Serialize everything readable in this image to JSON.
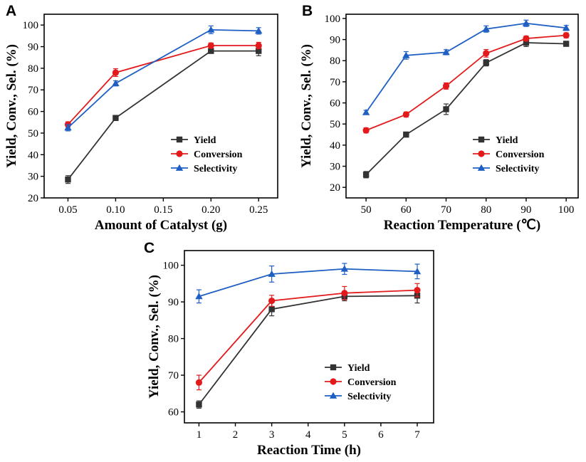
{
  "colors": {
    "yield": "#333333",
    "conversion": "#e31a1c",
    "selectivity": "#1f5fc4"
  },
  "chart_data": [
    {
      "panel": "A",
      "type": "line",
      "xlabel": "Amount of Catalyst (g)",
      "ylabel": "Yield, Conv., Sel. (%)",
      "xlim": [
        0.025,
        0.27
      ],
      "ylim": [
        20,
        105
      ],
      "xticks": [
        0.05,
        0.1,
        0.15,
        0.2,
        0.25
      ],
      "xtick_labels": [
        "0.05",
        "0.10",
        "0.15",
        "0.20",
        "0.25"
      ],
      "yticks": [
        20,
        30,
        40,
        50,
        60,
        70,
        80,
        90,
        100
      ],
      "x": [
        0.05,
        0.1,
        0.2,
        0.25
      ],
      "legend_position": "bottom-right",
      "series": [
        {
          "name": "Yield",
          "key": "yield",
          "marker": "square",
          "values": [
            28.5,
            57,
            88,
            88
          ],
          "errors": [
            1.8,
            1.2,
            1.0,
            2.2
          ]
        },
        {
          "name": "Conversion",
          "key": "conversion",
          "marker": "circle",
          "values": [
            54,
            78,
            90.5,
            90.5
          ],
          "errors": [
            1.2,
            1.8,
            1.2,
            1.5
          ]
        },
        {
          "name": "Selectivity",
          "key": "selectivity",
          "marker": "triangle",
          "values": [
            52.5,
            73,
            97.8,
            97.3
          ],
          "errors": [
            1.5,
            1.2,
            1.8,
            1.5
          ]
        }
      ]
    },
    {
      "panel": "B",
      "type": "line",
      "xlabel": "Reaction Temperature (℃)",
      "ylabel": "Yield, Conv., Sel. (%)",
      "xlim": [
        45,
        103
      ],
      "ylim": [
        15,
        102
      ],
      "xticks": [
        50,
        60,
        70,
        80,
        90,
        100
      ],
      "xtick_labels": [
        "50",
        "60",
        "70",
        "80",
        "90",
        "100"
      ],
      "yticks": [
        20,
        30,
        40,
        50,
        60,
        70,
        80,
        90,
        100
      ],
      "x": [
        50,
        60,
        70,
        80,
        90,
        100
      ],
      "legend_position": "bottom-right",
      "series": [
        {
          "name": "Yield",
          "key": "yield",
          "marker": "square",
          "values": [
            26,
            45,
            57,
            79,
            88.5,
            88
          ],
          "errors": [
            1.5,
            1.2,
            2.5,
            1.5,
            1.8,
            1.2
          ]
        },
        {
          "name": "Conversion",
          "key": "conversion",
          "marker": "circle",
          "values": [
            47,
            54.5,
            68,
            83.5,
            90.5,
            92
          ],
          "errors": [
            1.2,
            1.2,
            1.5,
            1.8,
            1.2,
            1.2
          ]
        },
        {
          "name": "Selectivity",
          "key": "selectivity",
          "marker": "triangle",
          "values": [
            55.5,
            82.5,
            84,
            95,
            97.7,
            95.5
          ],
          "errors": [
            1.0,
            1.8,
            1.2,
            1.5,
            1.5,
            1.2
          ]
        }
      ]
    },
    {
      "panel": "C",
      "type": "line",
      "xlabel": "Reaction Time (h)",
      "ylabel": "Yield, Conv., Sel. (%)",
      "xlim": [
        0.6,
        7.45
      ],
      "ylim": [
        57,
        104
      ],
      "xticks": [
        1,
        2,
        3,
        4,
        5,
        6,
        7
      ],
      "xtick_labels": [
        "1",
        "2",
        "3",
        "4",
        "5",
        "6",
        "7"
      ],
      "yticks": [
        60,
        70,
        80,
        90,
        100
      ],
      "x": [
        1,
        3,
        5,
        7
      ],
      "legend_position": "bottom-right",
      "series": [
        {
          "name": "Yield",
          "key": "yield",
          "marker": "square",
          "values": [
            62,
            88,
            91.5,
            91.7
          ],
          "errors": [
            1.0,
            1.8,
            1.2,
            2.0
          ]
        },
        {
          "name": "Conversion",
          "key": "conversion",
          "marker": "circle",
          "values": [
            68,
            90.3,
            92.4,
            93.2
          ],
          "errors": [
            2.0,
            1.5,
            1.8,
            1.8
          ]
        },
        {
          "name": "Selectivity",
          "key": "selectivity",
          "marker": "triangle",
          "values": [
            91.5,
            97.6,
            99.0,
            98.3
          ],
          "errors": [
            1.8,
            2.2,
            1.5,
            2.0
          ]
        }
      ]
    }
  ]
}
